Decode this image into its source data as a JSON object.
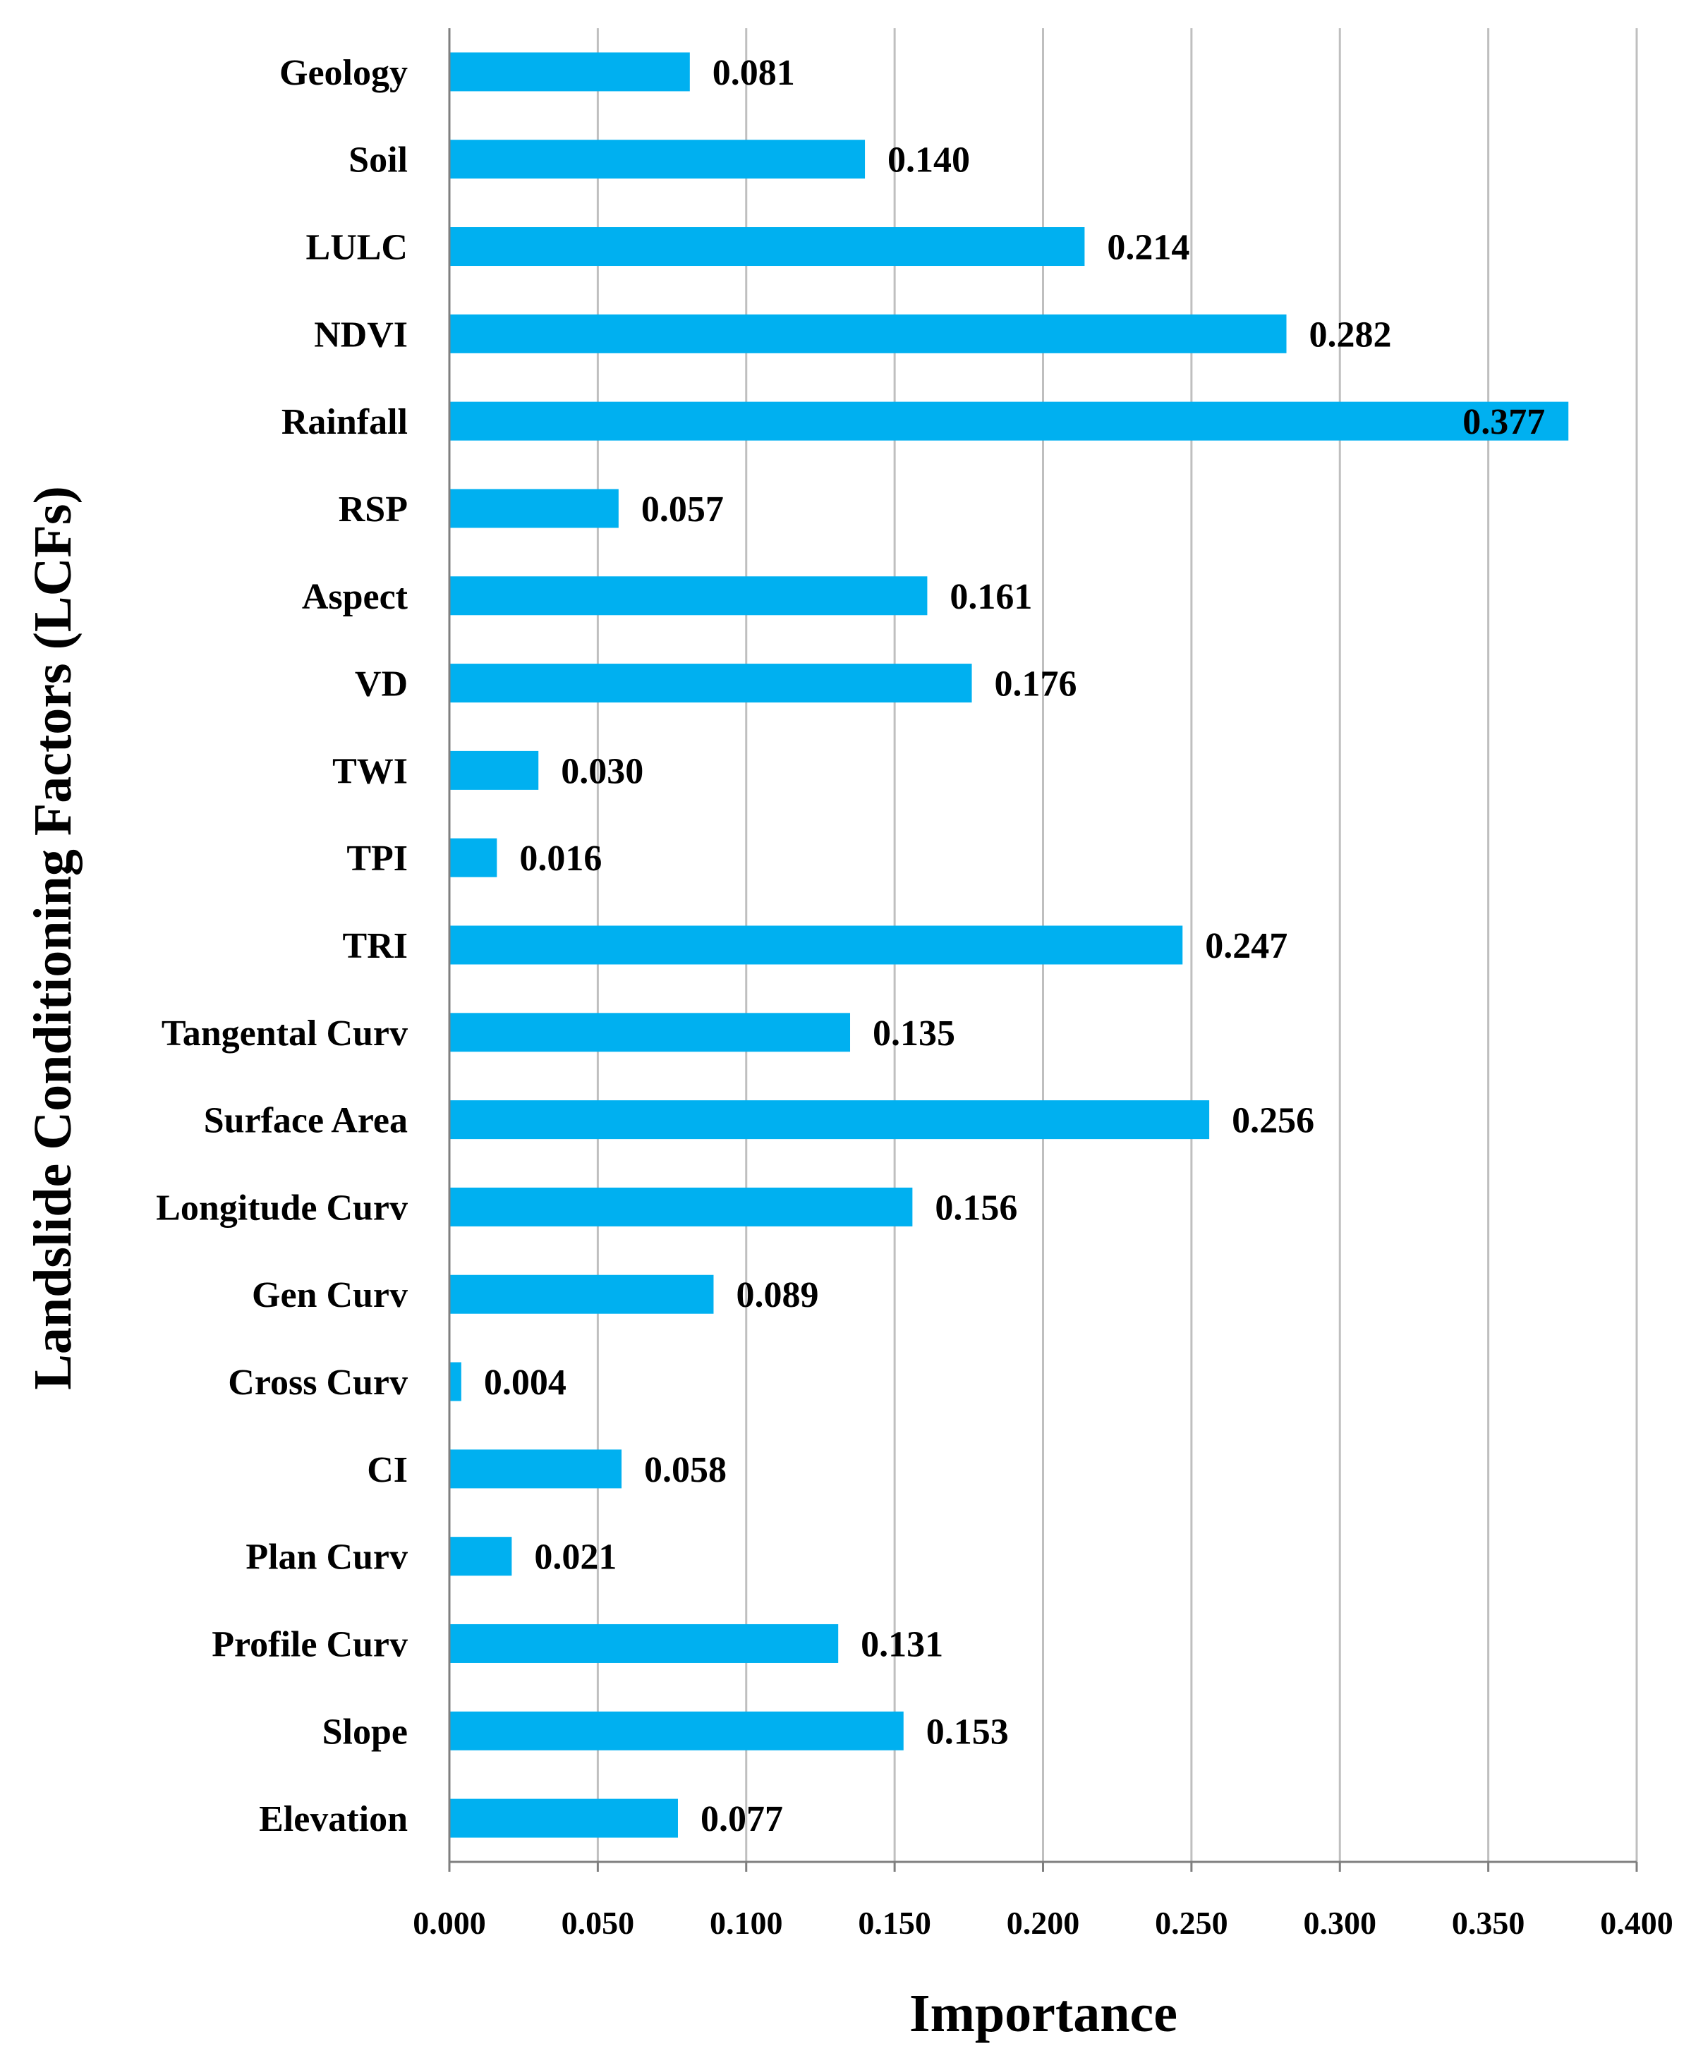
{
  "chart_data": {
    "type": "bar",
    "orientation": "horizontal",
    "title": "",
    "xlabel": "Importance",
    "ylabel": "Landslide Conditioning Factors (LCFs)",
    "xlim": [
      0,
      0.4
    ],
    "x_ticks": [
      "0.000",
      "0.050",
      "0.100",
      "0.150",
      "0.200",
      "0.250",
      "0.300",
      "0.350",
      "0.400"
    ],
    "x_tick_values": [
      0,
      0.05,
      0.1,
      0.15,
      0.2,
      0.25,
      0.3,
      0.35,
      0.4
    ],
    "grid": "vertical",
    "bar_color": "#00B0F0",
    "grid_color": "#BFBFBF",
    "categories": [
      "Geology",
      "Soil",
      "LULC",
      "NDVI",
      "Rainfall",
      "RSP",
      "Aspect",
      "VD",
      "TWI",
      "TPI",
      "TRI",
      "Tangental Curv",
      "Surface Area",
      "Longitude Curv",
      "Gen Curv",
      "Cross Curv",
      "CI",
      "Plan Curv",
      "Profile Curv",
      "Slope",
      "Elevation"
    ],
    "values": [
      0.081,
      0.14,
      0.214,
      0.282,
      0.377,
      0.057,
      0.161,
      0.176,
      0.03,
      0.016,
      0.247,
      0.135,
      0.256,
      0.156,
      0.089,
      0.004,
      0.058,
      0.021,
      0.131,
      0.153,
      0.077
    ],
    "value_labels": [
      "0.081",
      "0.140",
      "0.214",
      "0.282",
      "0.377",
      "0.057",
      "0.161",
      "0.176",
      "0.030",
      "0.016",
      "0.247",
      "0.135",
      "0.256",
      "0.156",
      "0.089",
      "0.004",
      "0.058",
      "0.021",
      "0.131",
      "0.153",
      "0.077"
    ]
  }
}
